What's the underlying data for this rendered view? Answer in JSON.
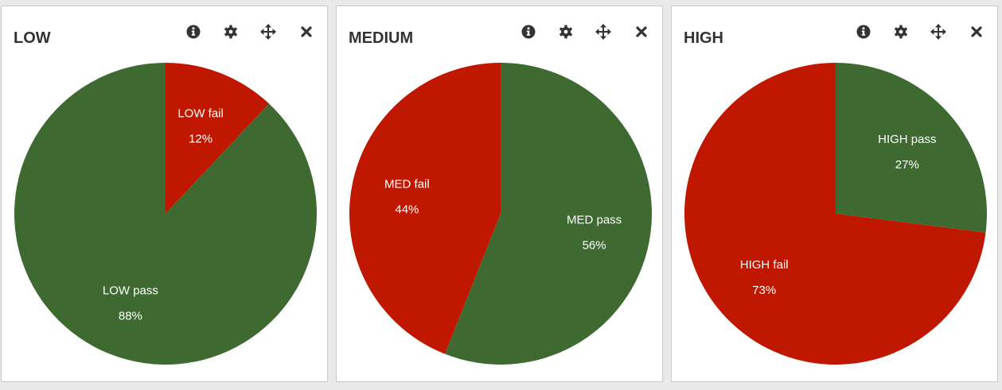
{
  "colors": {
    "pass": "#3e6a32",
    "fail": "#c01800",
    "panel_bg": "#ffffff",
    "page_bg": "#e9e9e9",
    "icon": "#333333"
  },
  "icons": [
    "info-icon",
    "gear-icon",
    "move-icon",
    "close-icon"
  ],
  "chart_data": [
    {
      "type": "pie",
      "title": "LOW",
      "slices": [
        {
          "label": "LOW fail",
          "value": 12,
          "display": "12%",
          "color": "#c01800"
        },
        {
          "label": "LOW pass",
          "value": 88,
          "display": "88%",
          "color": "#3e6a32"
        }
      ]
    },
    {
      "type": "pie",
      "title": "MEDIUM",
      "slices": [
        {
          "label": "MED pass",
          "value": 56,
          "display": "56%",
          "color": "#3e6a32"
        },
        {
          "label": "MED fail",
          "value": 44,
          "display": "44%",
          "color": "#c01800"
        }
      ]
    },
    {
      "type": "pie",
      "title": "HIGH",
      "slices": [
        {
          "label": "HIGH pass",
          "value": 27,
          "display": "27%",
          "color": "#3e6a32"
        },
        {
          "label": "HIGH fail",
          "value": 73,
          "display": "73%",
          "color": "#c01800"
        }
      ]
    }
  ]
}
